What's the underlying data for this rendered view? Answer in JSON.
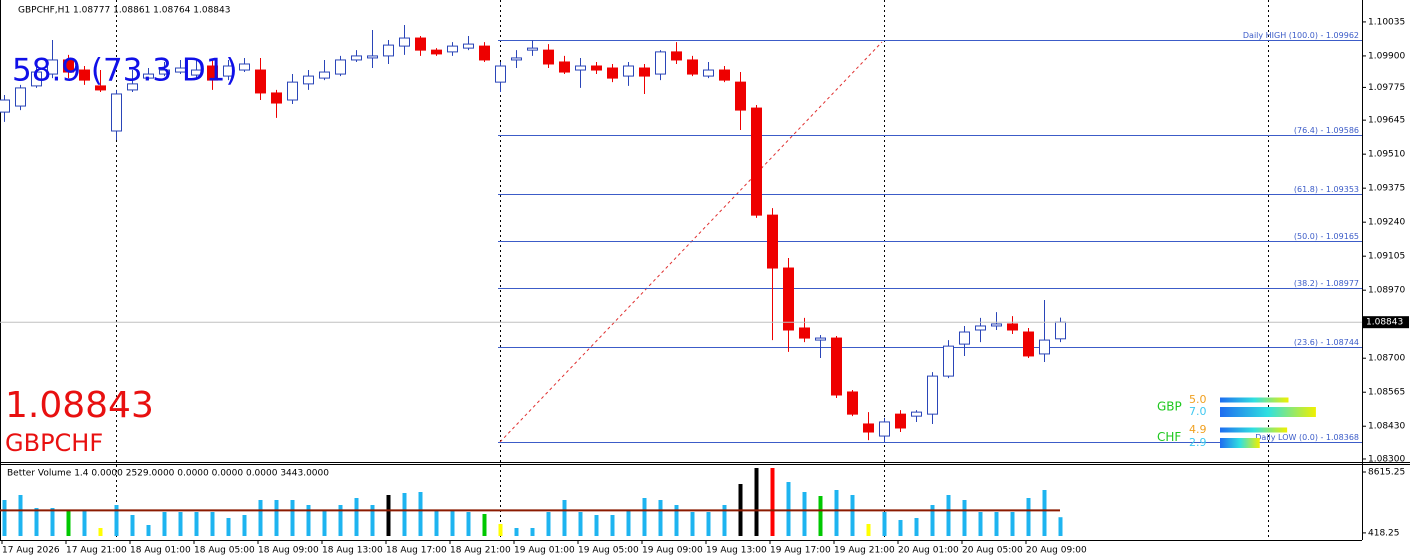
{
  "chart_data": [
    {
      "type": "candlestick",
      "header": "GBPCHF,H1  1.08777 1.08861 1.08764 1.08843",
      "title": "58.9 (73.3 D1)",
      "price_label": "GBPCHF",
      "categories": [
        "17 Aug 2026",
        null,
        null,
        null,
        "17 Aug 21:00",
        null,
        null,
        null,
        "18 Aug 01:00",
        null,
        null,
        null,
        "18 Aug 05:00",
        null,
        null,
        null,
        "18 Aug 09:00",
        null,
        null,
        null,
        "18 Aug 13:00",
        null,
        null,
        null,
        "18 Aug 17:00",
        null,
        null,
        null,
        "18 Aug 21:00",
        null,
        null,
        null,
        "19 Aug 01:00",
        null,
        null,
        null,
        "19 Aug 05:00",
        null,
        null,
        null,
        "19 Aug 09:00",
        null,
        null,
        null,
        "19 Aug 13:00",
        null,
        null,
        null,
        "19 Aug 17:00",
        null,
        null,
        null,
        "19 Aug 21:00",
        null,
        null,
        null,
        "20 Aug 01:00",
        null,
        null,
        null,
        "20 Aug 05:00",
        null,
        null,
        null,
        "20 Aug 09:00",
        null,
        null
      ],
      "open": [
        1.09677,
        1.09701,
        1.09781,
        1.09828,
        1.09884,
        1.09844,
        1.09781,
        1.09602,
        1.09765,
        1.09812,
        1.09828,
        1.09836,
        1.09824,
        1.0986,
        1.0982,
        1.09844,
        1.09844,
        1.09753,
        1.09725,
        1.09789,
        1.09812,
        1.09828,
        1.09884,
        1.09892,
        1.099,
        1.09939,
        1.09971,
        1.09923,
        1.09916,
        1.09931,
        1.09939,
        1.09796,
        1.09884,
        1.09923,
        1.09923,
        1.09876,
        1.09844,
        1.0986,
        1.09852,
        1.0982,
        1.09852,
        1.09828,
        1.09916,
        1.09884,
        1.0982,
        1.09844,
        1.09796,
        1.09693,
        1.09268,
        1.09058,
        1.0882,
        1.08772,
        1.0878,
        1.08566,
        1.08439,
        1.08391,
        1.08478,
        1.0847,
        1.08478,
        1.08629,
        1.08756,
        1.08812,
        1.08828,
        1.08836,
        1.08804,
        1.08717,
        1.08777
      ],
      "high": [
        1.09745,
        1.09785,
        1.09864,
        1.09963,
        1.09904,
        1.0986,
        1.09844,
        1.09765,
        1.09844,
        1.09852,
        1.09876,
        1.09884,
        1.09884,
        1.09884,
        1.09884,
        1.09892,
        1.09892,
        1.09765,
        1.09828,
        1.09844,
        1.09884,
        1.099,
        1.09923,
        1.10003,
        1.09963,
        1.10023,
        1.09979,
        1.09931,
        1.09955,
        1.09979,
        1.09955,
        1.09876,
        1.09923,
        1.09962,
        1.09947,
        1.099,
        1.09892,
        1.09876,
        1.09868,
        1.09876,
        1.09868,
        1.09923,
        1.09955,
        1.099,
        1.09876,
        1.0986,
        1.09836,
        1.09705,
        1.09296,
        1.09098,
        1.0886,
        1.08792,
        1.08788,
        1.08574,
        1.08486,
        1.08463,
        1.08494,
        1.08494,
        1.08645,
        1.08772,
        1.08828,
        1.0886,
        1.08883,
        1.08867,
        1.0882,
        1.08931,
        1.08861
      ],
      "low": [
        1.09638,
        1.09685,
        1.09773,
        1.09812,
        1.09812,
        1.09785,
        1.09757,
        1.09566,
        1.09757,
        1.09804,
        1.0982,
        1.09828,
        1.09812,
        1.09765,
        1.09804,
        1.09836,
        1.09725,
        1.09654,
        1.09709,
        1.09765,
        1.09804,
        1.0982,
        1.09876,
        1.09852,
        1.09868,
        1.09904,
        1.099,
        1.099,
        1.099,
        1.09923,
        1.09876,
        1.09757,
        1.09852,
        1.099,
        1.09852,
        1.09828,
        1.09773,
        1.09828,
        1.09796,
        1.09781,
        1.09749,
        1.09804,
        1.09868,
        1.0982,
        1.09812,
        1.09796,
        1.09606,
        1.09257,
        1.08772,
        1.08725,
        1.08764,
        1.08701,
        1.08542,
        1.0847,
        1.08375,
        1.08368,
        1.08407,
        1.08447,
        1.08439,
        1.08621,
        1.08709,
        1.08764,
        1.08812,
        1.08796,
        1.08701,
        1.08685,
        1.08764
      ],
      "close": [
        1.09725,
        1.09773,
        1.09836,
        1.09884,
        1.09836,
        1.09804,
        1.09765,
        1.09749,
        1.09789,
        1.09828,
        1.09844,
        1.09852,
        1.09844,
        1.09804,
        1.0986,
        1.09868,
        1.09753,
        1.09713,
        1.09796,
        1.0982,
        1.09836,
        1.09884,
        1.099,
        1.099,
        1.09943,
        1.09971,
        1.09923,
        1.09908,
        1.09939,
        1.09947,
        1.09884,
        1.0986,
        1.09892,
        1.09931,
        1.09868,
        1.09836,
        1.0986,
        1.09844,
        1.09812,
        1.0986,
        1.0982,
        1.09916,
        1.09884,
        1.09828,
        1.09844,
        1.09804,
        1.09685,
        1.09268,
        1.09058,
        1.08812,
        1.0878,
        1.0878,
        1.08554,
        1.08478,
        1.08407,
        1.08447,
        1.08423,
        1.08486,
        1.08629,
        1.08748,
        1.08804,
        1.08828,
        1.08836,
        1.08812,
        1.08709,
        1.08772,
        1.08843
      ],
      "up_color": "#ffffff",
      "up_border": "#2a45b8",
      "down_color": "#ee0000",
      "ylim": [
        1.08288,
        1.10122
      ],
      "yticks": [
        1.10035,
        {
          "value": 1.099,
          "label": "1.09900"
        },
        1.09775,
        1.09645,
        {
          "value": 1.0951,
          "label": "1.09510"
        },
        1.09375,
        {
          "value": 1.0924,
          "label": "1.09240"
        },
        1.09105,
        {
          "value": 1.0897,
          "label": "1.08970"
        },
        {
          "value": 1.087,
          "label": "1.08700"
        },
        1.08565,
        {
          "value": 1.0843,
          "label": "1.08430"
        },
        {
          "value": 1.083,
          "label": "1.08300"
        }
      ],
      "fib_color": "#3c5cc8",
      "fib_levels": [
        {
          "value": 1.09962,
          "label": "Daily HIGH (100.0) - 1.09962"
        },
        {
          "value": 1.09586,
          "label": "(76.4) - 1.09586"
        },
        {
          "value": 1.09353,
          "label": "(61.8) - 1.09353"
        },
        {
          "value": 1.09165,
          "label": "(50.0) - 1.09165"
        },
        {
          "value": 1.08977,
          "label": "(38.2) - 1.08977"
        },
        {
          "value": 1.08744,
          "label": "(23.6) - 1.08744"
        },
        {
          "value": 1.08368,
          "label": "Daily LOW (0.0) - 1.08368"
        }
      ],
      "currency_strength": [
        {
          "name": "GBP",
          "values": [
            5,
            7
          ],
          "value_labels": [
            "5.0",
            "7.0"
          ]
        },
        {
          "name": "CHF",
          "values": [
            4.9,
            2.9
          ],
          "value_labels": [
            "4.9",
            "2.9"
          ]
        }
      ]
    },
    {
      "type": "bar",
      "title": "Better Volume 1.4 0.0000 2529.0000 0.0000 0.0000 0.0000 3443.0000",
      "values": [
        4846,
        5519,
        3769,
        3769,
        3500,
        3500,
        1077,
        4173,
        2827,
        1481,
        3230,
        3230,
        3230,
        3230,
        2423,
        2827,
        4846,
        4846,
        4846,
        4173,
        3500,
        4173,
        5115,
        4173,
        5519,
        5788,
        5923,
        3500,
        3500,
        3230,
        2961,
        1615,
        1077,
        1077,
        3230,
        4846,
        3230,
        2827,
        2827,
        3500,
        5115,
        4846,
        4173,
        3230,
        3230,
        4173,
        6999,
        9153,
        9153,
        7268,
        5923,
        5384,
        6192,
        5519,
        1615,
        3230,
        2154,
        2423,
        4173,
        5519,
        4846,
        3230,
        3230,
        3230,
        5115,
        6192,
        2529
      ],
      "colors": [
        "#1eb4f0",
        "#1eb4f0",
        "#1eb4f0",
        "#1eb4f0",
        "#00c800",
        "#1eb4f0",
        "#ffff00",
        "#1eb4f0",
        "#1eb4f0",
        "#1eb4f0",
        "#1eb4f0",
        "#1eb4f0",
        "#1eb4f0",
        "#1eb4f0",
        "#1eb4f0",
        "#1eb4f0",
        "#1eb4f0",
        "#1eb4f0",
        "#1eb4f0",
        "#1eb4f0",
        "#1eb4f0",
        "#1eb4f0",
        "#1eb4f0",
        "#1eb4f0",
        "#000000",
        "#1eb4f0",
        "#1eb4f0",
        "#1eb4f0",
        "#1eb4f0",
        "#1eb4f0",
        "#00c800",
        "#ffff00",
        "#1eb4f0",
        "#1eb4f0",
        "#1eb4f0",
        "#1eb4f0",
        "#1eb4f0",
        "#1eb4f0",
        "#1eb4f0",
        "#1eb4f0",
        "#1eb4f0",
        "#1eb4f0",
        "#1eb4f0",
        "#1eb4f0",
        "#1eb4f0",
        "#1eb4f0",
        "#000000",
        "#000000",
        "#ff0000",
        "#1eb4f0",
        "#1eb4f0",
        "#00c800",
        "#1eb4f0",
        "#1eb4f0",
        "#ffff00",
        "#1eb4f0",
        "#1eb4f0",
        "#1eb4f0",
        "#1eb4f0",
        "#1eb4f0",
        "#1eb4f0",
        "#1eb4f0",
        "#1eb4f0",
        "#1eb4f0",
        "#1eb4f0",
        "#1eb4f0",
        "#1eb4f0"
      ],
      "average": 3443,
      "average_color": "#8b1a00",
      "ylim": [
        0,
        9827
      ],
      "yticks": [
        418.25,
        8615.25
      ]
    }
  ]
}
